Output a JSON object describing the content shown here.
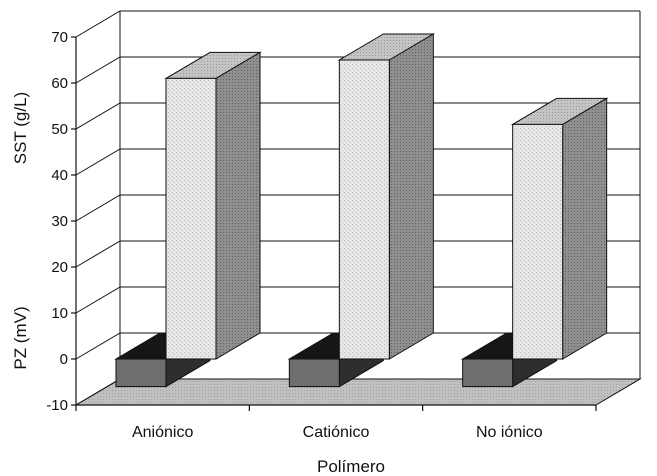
{
  "chart_data": {
    "type": "bar",
    "title": "",
    "xlabel": "Polímero",
    "ylabel_top": "SST (g/L)",
    "ylabel_bottom": "PZ (mV)",
    "ylim": [
      -10,
      70
    ],
    "yticks": [
      "70",
      "60",
      "50",
      "40",
      "30",
      "20",
      "10",
      "0",
      "-10"
    ],
    "categories": [
      "Aniónico",
      "Catiónico",
      "No iónico"
    ],
    "series": [
      {
        "name": "PZ (mV)",
        "values": [
          -6,
          -6,
          -6
        ]
      },
      {
        "name": "SST (g/L)",
        "values": [
          61,
          65,
          51
        ]
      }
    ],
    "grid": true,
    "colors": {
      "sst_front": "#e3e3e3",
      "sst_top": "#c2c2c2",
      "sst_side": "#8a8a8a",
      "pz_front": "#6e6e6e",
      "pz_top": "#161616",
      "pz_side": "#2e2e2e",
      "floor": "#bdbdbd",
      "grid": "#111111"
    }
  }
}
